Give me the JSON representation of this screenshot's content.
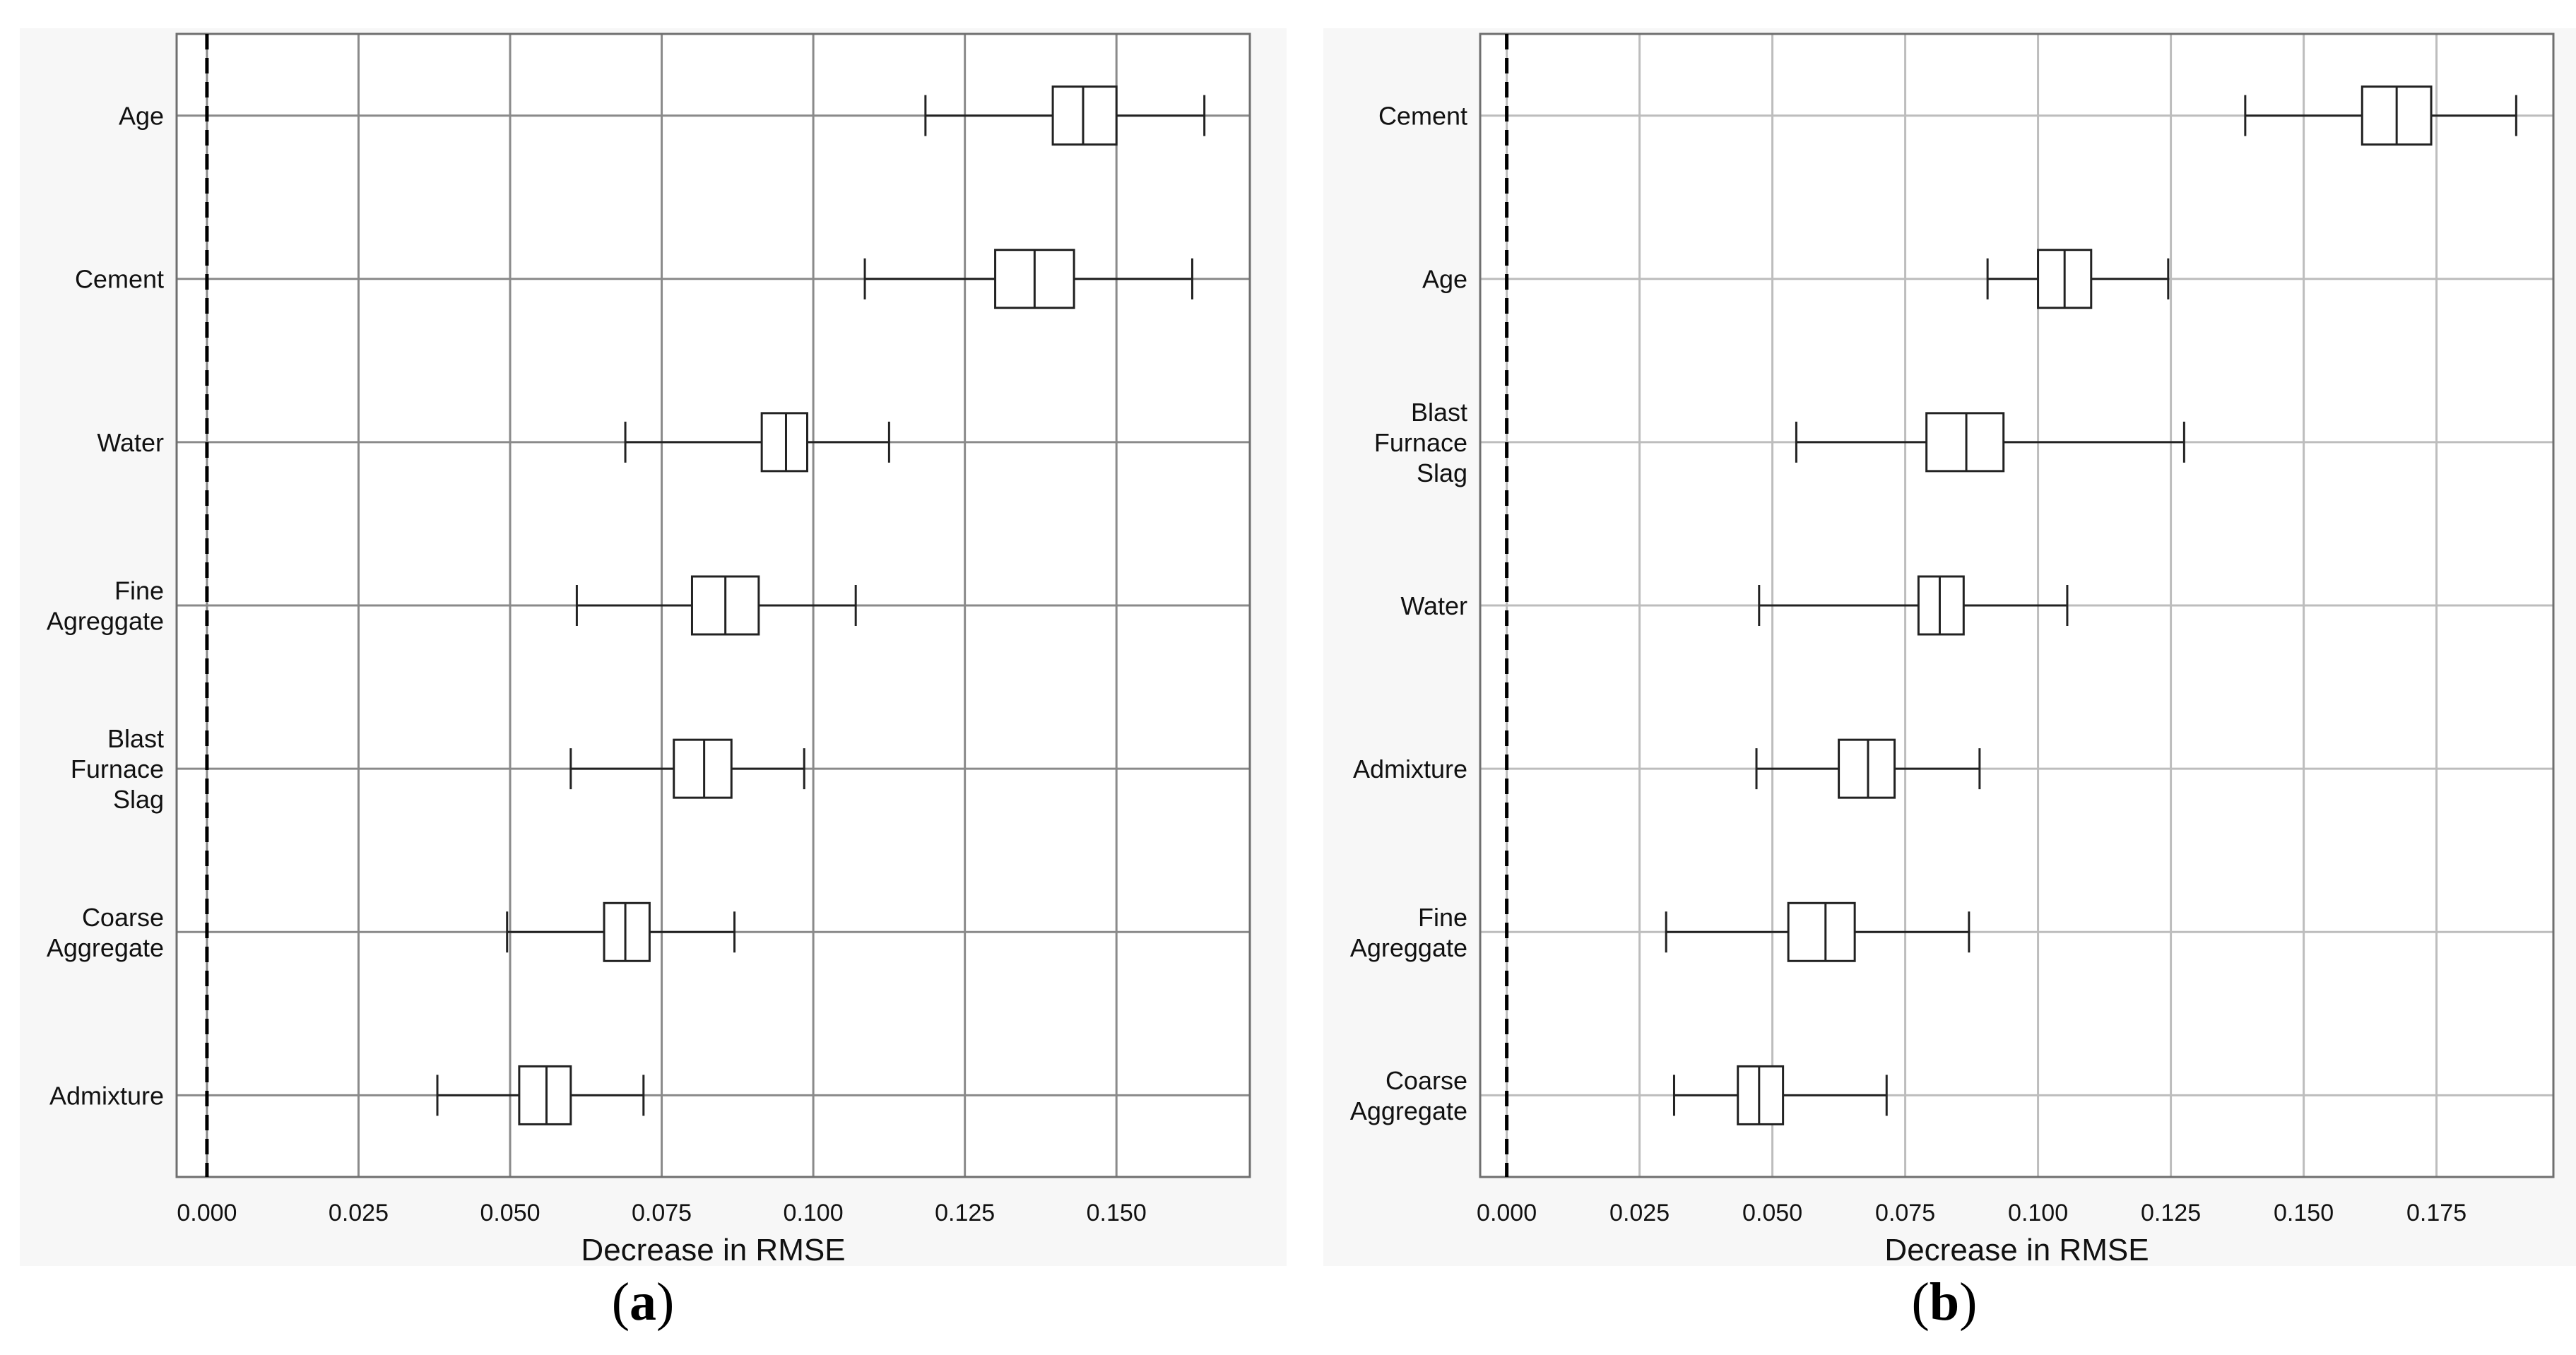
{
  "captions": {
    "a_letter": "a",
    "b_letter": "b"
  },
  "colors": {
    "plot_bg": "#ffffff",
    "panel_bg": "#f7f7f7",
    "grid_a": "#8a8a8a",
    "grid_b": "#bdbdbd",
    "box": "#222222",
    "zero_line": "#000000"
  },
  "chart_data": [
    {
      "id": "a",
      "type": "box",
      "orientation": "horizontal",
      "title": "",
      "xlabel": "Decrease in RMSE",
      "ylabel": "",
      "xlim": [
        -0.005,
        0.172
      ],
      "xticks": [
        0.0,
        0.025,
        0.05,
        0.075,
        0.1,
        0.125,
        0.15
      ],
      "xtick_labels": [
        "0.000",
        "0.025",
        "0.050",
        "0.075",
        "0.100",
        "0.125",
        "0.150"
      ],
      "grid": true,
      "reference_line": {
        "x": 0.0,
        "style": "dashed"
      },
      "categories": [
        {
          "label": [
            "Age"
          ],
          "whisker_low": 0.1185,
          "q1": 0.1395,
          "median": 0.1445,
          "q3": 0.15,
          "whisker_high": 0.1645
        },
        {
          "label": [
            "Cement"
          ],
          "whisker_low": 0.1085,
          "q1": 0.13,
          "median": 0.1365,
          "q3": 0.143,
          "whisker_high": 0.1625
        },
        {
          "label": [
            "Water"
          ],
          "whisker_low": 0.069,
          "q1": 0.0915,
          "median": 0.0955,
          "q3": 0.099,
          "whisker_high": 0.1125
        },
        {
          "label": [
            "Fine",
            "Agreggate"
          ],
          "whisker_low": 0.061,
          "q1": 0.08,
          "median": 0.0855,
          "q3": 0.091,
          "whisker_high": 0.107
        },
        {
          "label": [
            "Blast",
            "Furnace",
            "Slag"
          ],
          "whisker_low": 0.06,
          "q1": 0.077,
          "median": 0.082,
          "q3": 0.0865,
          "whisker_high": 0.0985
        },
        {
          "label": [
            "Coarse",
            "Aggregate"
          ],
          "whisker_low": 0.0495,
          "q1": 0.0655,
          "median": 0.069,
          "q3": 0.073,
          "whisker_high": 0.087
        },
        {
          "label": [
            "Admixture"
          ],
          "whisker_low": 0.038,
          "q1": 0.0515,
          "median": 0.056,
          "q3": 0.06,
          "whisker_high": 0.072
        }
      ]
    },
    {
      "id": "b",
      "type": "box",
      "orientation": "horizontal",
      "title": "",
      "xlabel": "Decrease in RMSE",
      "ylabel": "",
      "xlim": [
        -0.005,
        0.197
      ],
      "xticks": [
        0.0,
        0.025,
        0.05,
        0.075,
        0.1,
        0.125,
        0.15,
        0.175
      ],
      "xtick_labels": [
        "0.000",
        "0.025",
        "0.050",
        "0.075",
        "0.100",
        "0.125",
        "0.150",
        "0.175"
      ],
      "grid": true,
      "reference_line": {
        "x": 0.0,
        "style": "dashed"
      },
      "categories": [
        {
          "label": [
            "Cement"
          ],
          "whisker_low": 0.139,
          "q1": 0.161,
          "median": 0.1675,
          "q3": 0.174,
          "whisker_high": 0.19
        },
        {
          "label": [
            "Age"
          ],
          "whisker_low": 0.0905,
          "q1": 0.1,
          "median": 0.105,
          "q3": 0.11,
          "whisker_high": 0.1245
        },
        {
          "label": [
            "Blast",
            "Furnace",
            "Slag"
          ],
          "whisker_low": 0.0545,
          "q1": 0.079,
          "median": 0.0865,
          "q3": 0.0935,
          "whisker_high": 0.1275
        },
        {
          "label": [
            "Water"
          ],
          "whisker_low": 0.0475,
          "q1": 0.0775,
          "median": 0.0815,
          "q3": 0.086,
          "whisker_high": 0.1055
        },
        {
          "label": [
            "Admixture"
          ],
          "whisker_low": 0.047,
          "q1": 0.0625,
          "median": 0.068,
          "q3": 0.073,
          "whisker_high": 0.089
        },
        {
          "label": [
            "Fine",
            "Agreggate"
          ],
          "whisker_low": 0.03,
          "q1": 0.053,
          "median": 0.06,
          "q3": 0.0655,
          "whisker_high": 0.087
        },
        {
          "label": [
            "Coarse",
            "Aggregate"
          ],
          "whisker_low": 0.0315,
          "q1": 0.0435,
          "median": 0.0475,
          "q3": 0.052,
          "whisker_high": 0.0715
        }
      ]
    }
  ]
}
